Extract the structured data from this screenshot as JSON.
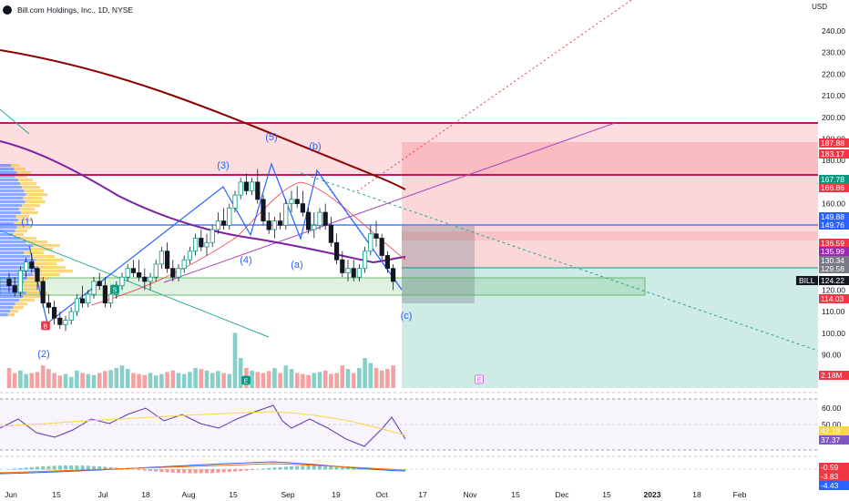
{
  "header": {
    "title": "Bill.com Holdings, Inc., 1D, NYSE",
    "currency": "USD"
  },
  "chart_data": {
    "type": "candlestick",
    "price_axis": {
      "ticks": [
        "240.00",
        "230.00",
        "220.00",
        "210.00",
        "200.00",
        "190.00",
        "180.00",
        "170.00",
        "160.00",
        "150.00",
        "140.00",
        "130.00",
        "120.00",
        "110.00",
        "100.00",
        "90.00",
        "80.00"
      ],
      "range": [
        75,
        245
      ]
    },
    "time_axis": {
      "ticks": [
        "Jun",
        "15",
        "Jul",
        "18",
        "Aug",
        "15",
        "Sep",
        "19",
        "Oct",
        "17",
        "Nov",
        "15",
        "Dec",
        "15",
        "2023",
        "18",
        "Feb"
      ]
    },
    "price_badges": [
      {
        "label": "187.88",
        "color": "#f23645"
      },
      {
        "label": "183.17",
        "color": "#f23645"
      },
      {
        "label": "167.78",
        "color": "#089981"
      },
      {
        "label": "166.86",
        "color": "#f23645"
      },
      {
        "label": "149.88",
        "color": "#2962ff"
      },
      {
        "label": "149.76",
        "color": "#2962ff"
      },
      {
        "label": "136.59",
        "color": "#f23645"
      },
      {
        "label": "135.99",
        "color": "#9c27b0"
      },
      {
        "label": "130.34",
        "color": "#787b86"
      },
      {
        "label": "129.58",
        "color": "#787b86"
      },
      {
        "label": "124.22",
        "color": "#131722"
      },
      {
        "label": "114.03",
        "color": "#f23645"
      },
      {
        "label": "2.18M",
        "color": "#f23645"
      }
    ],
    "symbol_tag": "BILL",
    "rsi": {
      "ticks": [
        "60.00",
        "50.00"
      ],
      "values": [
        {
          "label": "42.19",
          "color": "#f7d64a",
          "text": "#131722"
        },
        {
          "label": "37.37",
          "color": "#7e57c2",
          "text": "#ffffff"
        }
      ]
    },
    "macd": {
      "values": [
        {
          "label": "-0.59",
          "color": "#f23645"
        },
        {
          "label": "-3.83",
          "color": "#f23645"
        },
        {
          "label": "-4.43",
          "color": "#2962ff"
        }
      ]
    },
    "wave_labels": [
      "(1)",
      "(2)",
      "(3)",
      "(4)",
      "(5)",
      "(a)",
      "(b)",
      "(c)"
    ],
    "events": [
      "B",
      "S",
      "E",
      "E"
    ],
    "candles": [
      [
        125,
        128,
        119,
        122
      ],
      [
        122,
        126,
        117,
        119
      ],
      [
        119,
        131,
        117,
        129
      ],
      [
        129,
        135,
        126,
        133
      ],
      [
        133,
        137,
        128,
        130
      ],
      [
        130,
        131,
        120,
        124
      ],
      [
        124,
        126,
        112,
        114
      ],
      [
        114,
        118,
        109,
        112
      ],
      [
        112,
        115,
        104,
        107
      ],
      [
        107,
        110,
        102,
        104
      ],
      [
        104,
        108,
        101,
        106
      ],
      [
        106,
        112,
        104,
        110
      ],
      [
        110,
        118,
        108,
        116
      ],
      [
        116,
        122,
        112,
        114
      ],
      [
        114,
        120,
        112,
        118
      ],
      [
        118,
        126,
        116,
        124
      ],
      [
        124,
        128,
        120,
        122
      ],
      [
        122,
        126,
        112,
        114
      ],
      [
        114,
        120,
        112,
        118
      ],
      [
        118,
        124,
        116,
        122
      ],
      [
        122,
        128,
        120,
        126
      ],
      [
        126,
        132,
        124,
        130
      ],
      [
        130,
        134,
        126,
        128
      ],
      [
        128,
        134,
        124,
        126
      ],
      [
        126,
        130,
        120,
        124
      ],
      [
        124,
        128,
        120,
        126
      ],
      [
        126,
        134,
        124,
        132
      ],
      [
        132,
        140,
        130,
        138
      ],
      [
        138,
        142,
        128,
        130
      ],
      [
        130,
        134,
        124,
        126
      ],
      [
        126,
        132,
        124,
        130
      ],
      [
        130,
        136,
        128,
        134
      ],
      [
        134,
        140,
        132,
        138
      ],
      [
        138,
        146,
        136,
        144
      ],
      [
        144,
        148,
        138,
        140
      ],
      [
        140,
        146,
        136,
        142
      ],
      [
        142,
        150,
        140,
        148
      ],
      [
        148,
        156,
        146,
        152
      ],
      [
        152,
        158,
        148,
        150
      ],
      [
        150,
        160,
        148,
        158
      ],
      [
        158,
        166,
        156,
        164
      ],
      [
        164,
        172,
        162,
        170
      ],
      [
        170,
        174,
        164,
        166
      ],
      [
        166,
        172,
        164,
        170
      ],
      [
        170,
        176,
        160,
        162
      ],
      [
        162,
        164,
        150,
        152
      ],
      [
        152,
        156,
        146,
        148
      ],
      [
        148,
        154,
        144,
        152
      ],
      [
        152,
        156,
        148,
        150
      ],
      [
        150,
        162,
        148,
        160
      ],
      [
        160,
        166,
        156,
        162
      ],
      [
        162,
        168,
        158,
        160
      ],
      [
        160,
        166,
        154,
        156
      ],
      [
        156,
        158,
        146,
        148
      ],
      [
        148,
        156,
        144,
        150
      ],
      [
        150,
        158,
        148,
        156
      ],
      [
        156,
        160,
        148,
        150
      ],
      [
        150,
        154,
        140,
        142
      ],
      [
        142,
        146,
        132,
        134
      ],
      [
        134,
        138,
        126,
        128
      ],
      [
        128,
        134,
        124,
        130
      ],
      [
        130,
        134,
        124,
        126
      ],
      [
        126,
        132,
        124,
        130
      ],
      [
        130,
        140,
        128,
        138
      ],
      [
        138,
        150,
        136,
        146
      ],
      [
        146,
        152,
        140,
        144
      ],
      [
        144,
        146,
        134,
        136
      ],
      [
        136,
        138,
        128,
        130
      ],
      [
        130,
        132,
        120,
        124
      ]
    ],
    "volume": [
      40,
      30,
      35,
      28,
      30,
      32,
      45,
      38,
      30,
      25,
      28,
      22,
      35,
      30,
      28,
      26,
      30,
      34,
      36,
      40,
      45,
      38,
      30,
      28,
      26,
      30,
      25,
      28,
      32,
      35,
      30,
      28,
      32,
      40,
      38,
      35,
      30,
      34,
      30,
      28,
      110,
      60,
      40,
      35,
      32,
      30,
      34,
      40,
      30,
      45,
      38,
      30,
      28,
      26,
      30,
      32,
      35,
      28,
      30,
      45,
      38,
      30,
      40,
      60,
      50,
      40,
      35,
      38,
      45
    ]
  }
}
